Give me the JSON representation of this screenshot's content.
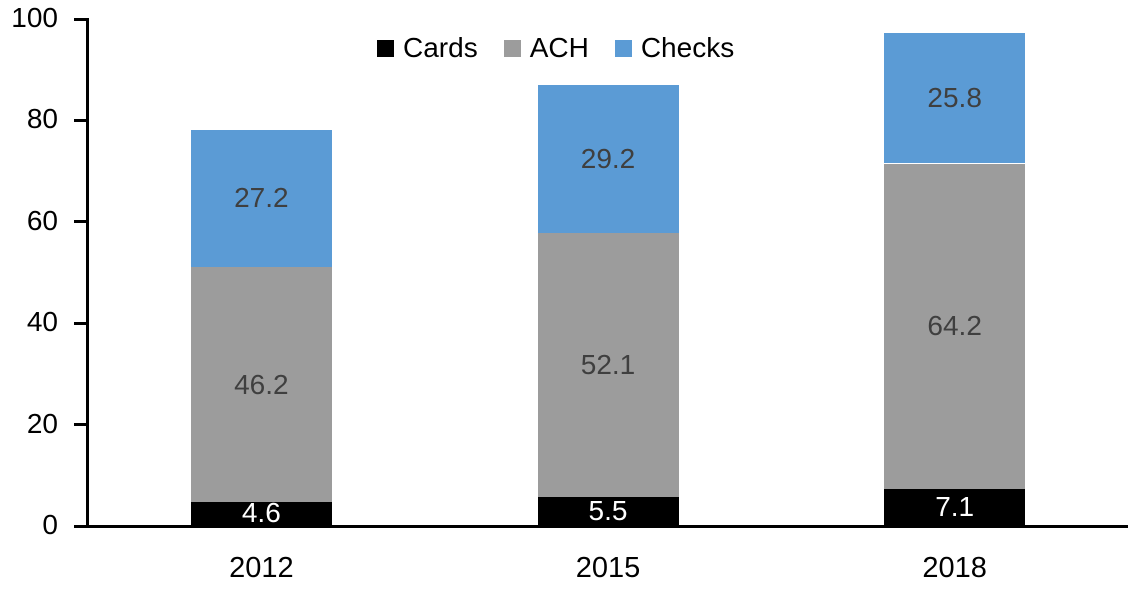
{
  "chart_data": {
    "type": "bar",
    "stacked": true,
    "title": "",
    "xlabel": "",
    "ylabel": "",
    "categories": [
      "2012",
      "2015",
      "2018"
    ],
    "series": [
      {
        "name": "Cards",
        "color": "#000000",
        "label_color": "#FFFFFF",
        "values": [
          4.6,
          5.5,
          7.1
        ]
      },
      {
        "name": "ACH",
        "color": "#9C9C9C",
        "label_color": "#3F3F3F",
        "values": [
          46.2,
          52.1,
          64.2
        ]
      },
      {
        "name": "Checks",
        "color": "#5B9BD5",
        "label_color": "#3F3F3F",
        "values": [
          27.2,
          29.2,
          25.8
        ]
      }
    ],
    "yticks": [
      0,
      20,
      40,
      60,
      80,
      100
    ],
    "ylim": [
      0,
      100
    ],
    "legend_position": "top-center",
    "legend_entries": [
      "Cards",
      "ACH",
      "Checks"
    ],
    "grid": false,
    "axis_color": "#000000",
    "background_color": "#FFFFFF"
  }
}
